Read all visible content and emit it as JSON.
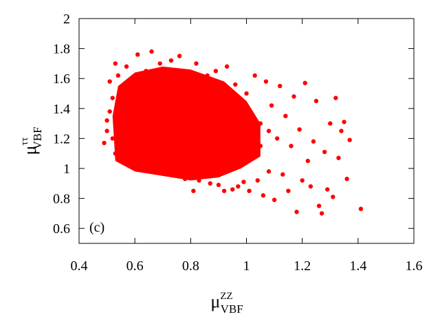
{
  "chart_data": {
    "type": "scatter",
    "panel_label": "(c)",
    "xlabel": {
      "base": "μ",
      "sup": "ZZ",
      "sub": "VBF"
    },
    "ylabel": {
      "base": "μ",
      "sup": "ττ",
      "sub": "VBF"
    },
    "xlim": [
      0.4,
      1.6
    ],
    "ylim": [
      0.5,
      2.0
    ],
    "xticks": [
      0.4,
      0.6,
      0.8,
      1.0,
      1.2,
      1.4,
      1.6
    ],
    "xtick_labels": [
      "0.4",
      "0.6",
      "0.8",
      "1",
      "1.2",
      "1.4",
      "1.6"
    ],
    "yticks": [
      0.6,
      0.8,
      1.0,
      1.2,
      1.4,
      1.6,
      1.8,
      2.0
    ],
    "ytick_labels": [
      "0.6",
      "0.8",
      "1",
      "1.2",
      "1.4",
      "1.6",
      "1.8",
      "2"
    ],
    "grid": false,
    "marker_color": "#ff0000",
    "series": [
      {
        "points": [
          [
            0.49,
            1.17
          ],
          [
            0.5,
            1.25
          ],
          [
            0.5,
            1.32
          ],
          [
            0.51,
            1.38
          ],
          [
            0.51,
            1.58
          ],
          [
            0.52,
            1.2
          ],
          [
            0.52,
            1.47
          ],
          [
            0.53,
            1.1
          ],
          [
            0.53,
            1.7
          ],
          [
            0.54,
            1.62
          ],
          [
            0.54,
            1.27
          ],
          [
            0.55,
            1.4
          ],
          [
            0.56,
            1.52
          ],
          [
            0.56,
            1.15
          ],
          [
            0.57,
            1.08
          ],
          [
            0.57,
            1.68
          ],
          [
            0.58,
            1.3
          ],
          [
            0.59,
            1.06
          ],
          [
            0.6,
            1.56
          ],
          [
            0.61,
            1.76
          ],
          [
            0.62,
            1.12
          ],
          [
            0.63,
            1.02
          ],
          [
            0.64,
            1.65
          ],
          [
            0.65,
            1.45
          ],
          [
            0.66,
            1.78
          ],
          [
            0.67,
            1.04
          ],
          [
            0.68,
            1.22
          ],
          [
            0.69,
            1.7
          ],
          [
            0.7,
            1.0
          ],
          [
            0.71,
            1.6
          ],
          [
            0.72,
            0.99
          ],
          [
            0.73,
            1.72
          ],
          [
            0.74,
            1.33
          ],
          [
            0.75,
            0.96
          ],
          [
            0.76,
            1.75
          ],
          [
            0.77,
            1.18
          ],
          [
            0.78,
            0.93
          ],
          [
            0.79,
            1.62
          ],
          [
            0.8,
            0.94
          ],
          [
            0.81,
            0.85
          ],
          [
            0.82,
            1.7
          ],
          [
            0.83,
            0.92
          ],
          [
            0.84,
            1.42
          ],
          [
            0.85,
            0.95
          ],
          [
            0.86,
            1.62
          ],
          [
            0.87,
            0.9
          ],
          [
            0.88,
            1.11
          ],
          [
            0.89,
            1.65
          ],
          [
            0.9,
            0.89
          ],
          [
            0.91,
            1.38
          ],
          [
            0.92,
            0.85
          ],
          [
            0.93,
            1.68
          ],
          [
            0.94,
            1.02
          ],
          [
            0.95,
            0.86
          ],
          [
            0.96,
            1.56
          ],
          [
            0.97,
            0.88
          ],
          [
            0.98,
            1.23
          ],
          [
            0.99,
            0.91
          ],
          [
            1.0,
            1.5
          ],
          [
            1.01,
            0.85
          ],
          [
            1.02,
            1.08
          ],
          [
            1.03,
            1.62
          ],
          [
            1.04,
            0.92
          ],
          [
            1.05,
            1.3
          ],
          [
            1.06,
            0.82
          ],
          [
            1.07,
            1.58
          ],
          [
            1.08,
            0.98
          ],
          [
            1.09,
            1.42
          ],
          [
            1.1,
            0.79
          ],
          [
            1.11,
            1.2
          ],
          [
            1.12,
            1.55
          ],
          [
            1.13,
            0.96
          ],
          [
            1.14,
            1.35
          ],
          [
            1.15,
            0.85
          ],
          [
            1.16,
            1.15
          ],
          [
            1.17,
            1.48
          ],
          [
            1.18,
            0.71
          ],
          [
            1.19,
            1.26
          ],
          [
            1.2,
            0.92
          ],
          [
            1.21,
            1.57
          ],
          [
            1.22,
            1.05
          ],
          [
            1.23,
            0.88
          ],
          [
            1.24,
            1.18
          ],
          [
            1.25,
            1.45
          ],
          [
            1.26,
            0.75
          ],
          [
            1.27,
            0.7
          ],
          [
            1.28,
            1.11
          ],
          [
            1.29,
            0.86
          ],
          [
            1.3,
            1.3
          ],
          [
            1.31,
            0.81
          ],
          [
            1.32,
            1.47
          ],
          [
            1.33,
            1.07
          ],
          [
            1.34,
            1.25
          ],
          [
            1.35,
            1.31
          ],
          [
            1.36,
            0.93
          ],
          [
            1.37,
            1.19
          ],
          [
            1.41,
            0.73
          ],
          [
            0.6,
            1.3
          ],
          [
            0.65,
            1.28
          ],
          [
            0.7,
            1.35
          ],
          [
            0.75,
            1.26
          ],
          [
            0.8,
            1.32
          ],
          [
            0.85,
            1.24
          ],
          [
            0.9,
            1.28
          ],
          [
            0.95,
            1.2
          ],
          [
            0.62,
            1.4
          ],
          [
            0.68,
            1.15
          ],
          [
            0.72,
            1.48
          ],
          [
            0.78,
            1.42
          ],
          [
            0.82,
            1.18
          ],
          [
            0.88,
            1.35
          ],
          [
            0.58,
            1.2
          ],
          [
            0.64,
            1.22
          ],
          [
            0.7,
            1.1
          ],
          [
            0.76,
            1.08
          ],
          [
            0.84,
            1.06
          ],
          [
            0.92,
            1.15
          ],
          [
            0.98,
            1.1
          ],
          [
            1.0,
            1.25
          ],
          [
            1.05,
            1.15
          ],
          [
            0.55,
            1.32
          ],
          [
            0.66,
            1.52
          ],
          [
            0.74,
            1.56
          ],
          [
            0.86,
            1.48
          ],
          [
            0.96,
            1.4
          ],
          [
            1.02,
            1.35
          ],
          [
            1.08,
            1.25
          ]
        ]
      }
    ]
  }
}
